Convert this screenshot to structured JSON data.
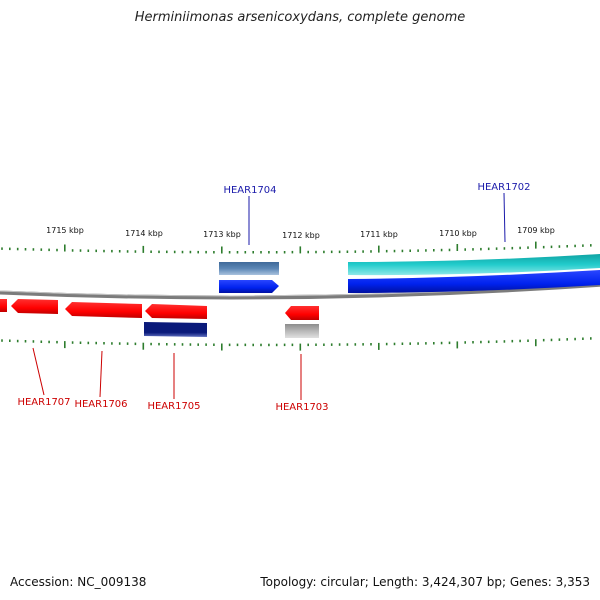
{
  "title": "Herminiimonas arsenicoxydans, complete genome",
  "footer": {
    "accession": "Accession: NC_009138",
    "stats": "Topology: circular; Length: 3,424,307 bp; Genes: 3,353"
  },
  "colors": {
    "backbone": "#8a8a8a",
    "tick": "#2e7d2e",
    "forward_label": "#1a1aaa",
    "reverse_label": "#cc0000",
    "red": "#ff0000",
    "blue": "#0022ee",
    "cyan": "#22cccc",
    "steelblue": "#5b86b5",
    "navy": "#0a1a7a",
    "grey": "#b8b8b8"
  },
  "ticks": [
    "1715 kbp",
    "1714 kbp",
    "1713 kbp",
    "1712 kbp",
    "1711 kbp",
    "1710 kbp",
    "1709 kbp"
  ],
  "gene_labels": [
    {
      "name": "HEAR1704",
      "strand": "forward"
    },
    {
      "name": "HEAR1702",
      "strand": "forward"
    },
    {
      "name": "HEAR1707",
      "strand": "reverse"
    },
    {
      "name": "HEAR1706",
      "strand": "reverse"
    },
    {
      "name": "HEAR1705",
      "strand": "reverse"
    },
    {
      "name": "HEAR1703",
      "strand": "reverse"
    }
  ]
}
